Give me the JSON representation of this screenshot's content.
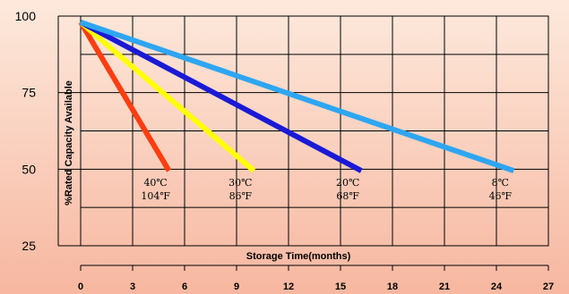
{
  "chart_data": {
    "type": "line",
    "title": "",
    "xlabel": "Storage Time(months)",
    "ylabel": "%Rated Capacity Available",
    "xlim": [
      0,
      27
    ],
    "ylim": [
      25,
      100
    ],
    "x_ticks": [
      0,
      3,
      6,
      9,
      12,
      15,
      18,
      21,
      24,
      27
    ],
    "y_ticks": [
      25,
      50,
      75,
      100
    ],
    "grid": true,
    "background_colors": [
      "#fde9dc",
      "#f7b7a0"
    ],
    "series": [
      {
        "label_lines": [
          "40℃",
          "104℉"
        ],
        "color": "#ff3d10",
        "x": [
          0,
          5.1
        ],
        "y": [
          98,
          49.5
        ]
      },
      {
        "label_lines": [
          "30℃",
          "86℉"
        ],
        "color": "#ffff00",
        "x": [
          0,
          10
        ],
        "y": [
          98,
          49.5
        ]
      },
      {
        "label_lines": [
          "20℃",
          "68℉"
        ],
        "color": "#1a1ad6",
        "x": [
          0,
          16.2
        ],
        "y": [
          98,
          49.5
        ]
      },
      {
        "label_lines": [
          "8℃",
          "46℉"
        ],
        "color": "#2ea6f2",
        "x": [
          0,
          25
        ],
        "y": [
          98,
          49.5
        ]
      }
    ]
  }
}
